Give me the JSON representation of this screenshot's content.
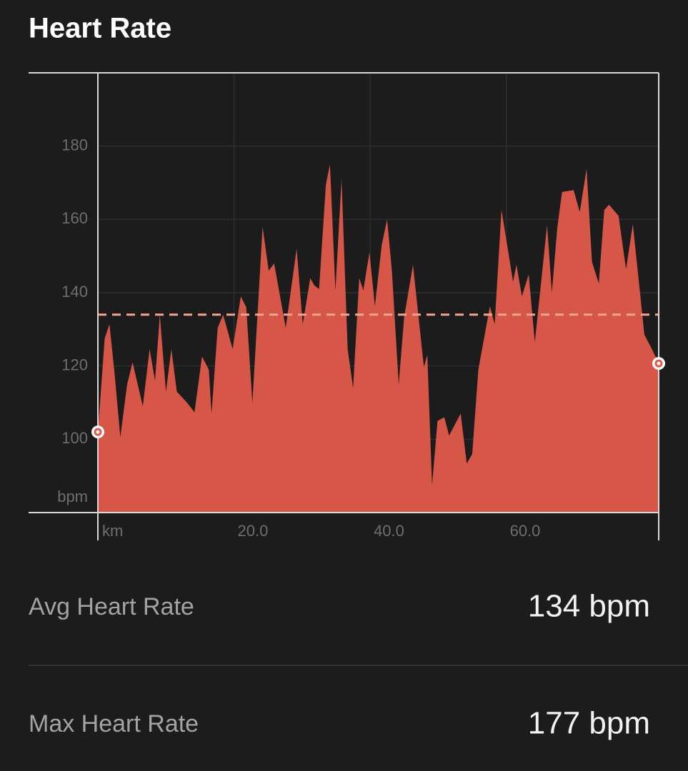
{
  "chart_data": {
    "type": "area",
    "title": "Heart Rate",
    "x_label": "km",
    "y_label": "bpm",
    "color": "#e05a4b",
    "avg_color": "#f4a58f",
    "avg_line": 134,
    "xlim": [
      0,
      82.4
    ],
    "ylim": [
      80,
      200
    ],
    "xticks": [
      {
        "value": 20,
        "label": "20.0"
      },
      {
        "value": 40,
        "label": "40.0"
      },
      {
        "value": 60,
        "label": "60.0"
      }
    ],
    "yticks": [
      100,
      120,
      140,
      160,
      180
    ],
    "grid": true,
    "x": [
      0,
      1.0,
      1.7,
      2.4,
      3.3,
      4.3,
      5.1,
      6.6,
      7.6,
      8.4,
      9.1,
      10.0,
      10.8,
      11.6,
      13.1,
      14.2,
      15.3,
      16.3,
      16.7,
      17.6,
      18.4,
      19.8,
      21.0,
      21.8,
      22.7,
      24.2,
      25.1,
      25.9,
      27.6,
      29.2,
      30.1,
      31.2,
      31.8,
      32.5,
      33.5,
      34.1,
      34.9,
      35.8,
      36.7,
      37.5,
      38.4,
      39.0,
      39.9,
      40.7,
      41.7,
      42.5,
      43.2,
      44.2,
      45.0,
      46.3,
      47.9,
      48.4,
      49.1,
      49.9,
      50.9,
      51.6,
      53.3,
      54.2,
      55.0,
      55.9,
      57.6,
      58.3,
      59.3,
      61.0,
      61.5,
      62.3,
      63.3,
      64.2,
      66.0,
      66.7,
      67.5,
      68.2,
      69.9,
      70.8,
      71.8,
      72.6,
      73.6,
      74.4,
      75.1,
      76.5,
      77.6,
      78.6,
      80.3,
      81.3,
      82.4
    ],
    "series": [
      {
        "name": "Heart Rate",
        "values": [
          102,
          127.5,
          131.4,
          119,
          100.6,
          115,
          121,
          109,
          124.6,
          116,
          134,
          113,
          124.6,
          113,
          110,
          107.4,
          122.6,
          119,
          107,
          130.4,
          134,
          124.6,
          139,
          136,
          110,
          158,
          146,
          148,
          130.4,
          152,
          131.4,
          144,
          142,
          141,
          169.5,
          175,
          140.6,
          171,
          124.6,
          114,
          144,
          140.6,
          151,
          136.3,
          153,
          160,
          146,
          115,
          133.4,
          147.6,
          119.7,
          123,
          87.5,
          105,
          106,
          101,
          107,
          93.4,
          96,
          119,
          136.3,
          131.4,
          162.6,
          143,
          147.6,
          139,
          145,
          126.5,
          158.5,
          140,
          157.8,
          167.5,
          168,
          162,
          173.8,
          148.4,
          142.5,
          162.6,
          164,
          161,
          146.4,
          158.7,
          128.5,
          125,
          120.7
        ]
      }
    ]
  },
  "stats": [
    {
      "label": "Avg Heart Rate",
      "value": "134 bpm"
    },
    {
      "label": "Max Heart Rate",
      "value": "177 bpm"
    }
  ]
}
